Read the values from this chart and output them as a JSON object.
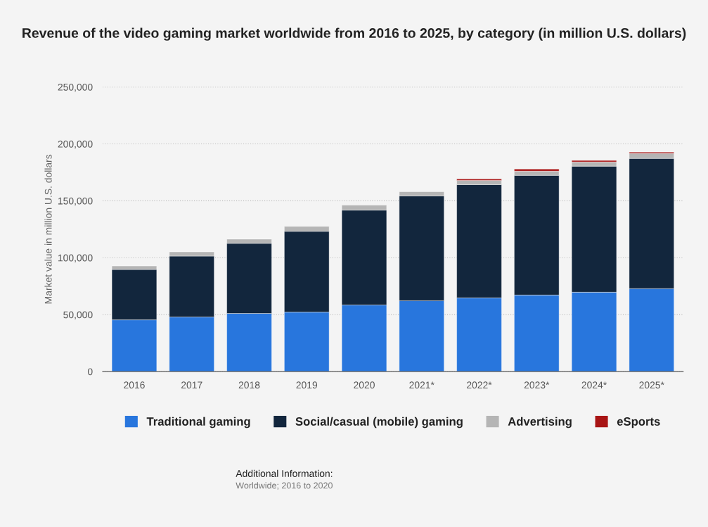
{
  "chart_data": {
    "type": "bar",
    "stacked": true,
    "title": "Revenue of the video gaming market worldwide from 2016 to 2025, by category (in million U.S. dollars)",
    "ylabel": "Market value in million U.S. dollars",
    "categories": [
      "2016",
      "2017",
      "2018",
      "2019",
      "2020",
      "2021*",
      "2022*",
      "2023*",
      "2024*",
      "2025*"
    ],
    "series": [
      {
        "name": "Traditional gaming",
        "color": "#2876dd",
        "values": [
          45400,
          47900,
          51000,
          52200,
          58500,
          62200,
          64700,
          67200,
          69700,
          72800
        ]
      },
      {
        "name": "Social/casual (mobile) gaming",
        "color": "#12263d",
        "values": [
          44200,
          53500,
          61600,
          71000,
          83300,
          92100,
          99500,
          105100,
          110700,
          114400
        ]
      },
      {
        "name": "Advertising",
        "color": "#b5b5b5",
        "values": [
          3100,
          3700,
          3700,
          4300,
          4400,
          3700,
          3700,
          3700,
          3700,
          4400
        ]
      },
      {
        "name": "eSports",
        "color": "#a81414",
        "values": [
          null,
          null,
          null,
          null,
          null,
          null,
          1300,
          1900,
          1300,
          1200
        ]
      }
    ],
    "ylim": [
      0,
      250000
    ],
    "yticks": [
      {
        "value": 0,
        "label": "0"
      },
      {
        "value": 50000,
        "label": "50,000"
      },
      {
        "value": 100000,
        "label": "100,000"
      },
      {
        "value": 150000,
        "label": "150,000"
      },
      {
        "value": 200000,
        "label": "200,000"
      },
      {
        "value": 250000,
        "label": "250,000"
      }
    ],
    "grid": "y",
    "legend": "bottom",
    "annotations": [
      "Additional Information:",
      "Worldwide; 2016 to 2020"
    ]
  }
}
